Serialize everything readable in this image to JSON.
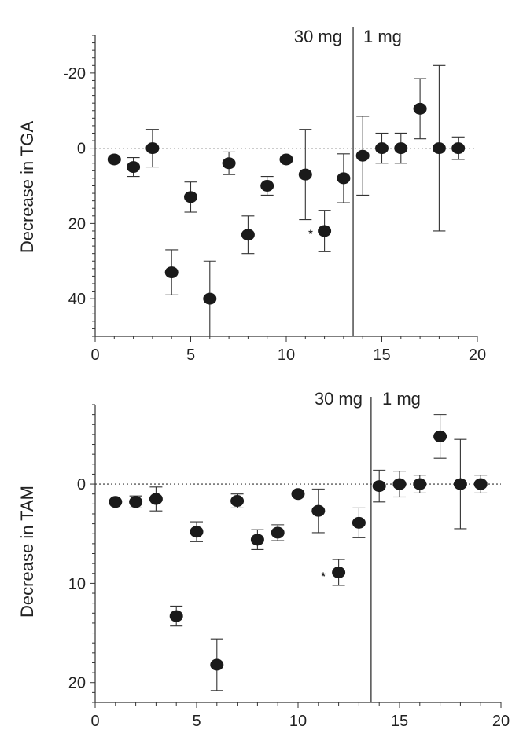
{
  "chart_data": [
    {
      "type": "scatter",
      "title": "",
      "xlabel": "",
      "ylabel": "Decrease in TGA",
      "xlim": [
        0,
        20
      ],
      "ylim": [
        -30,
        50
      ],
      "y_inverted": true,
      "x_ticks": [
        0,
        5,
        10,
        15,
        20
      ],
      "y_ticks": [
        -20,
        0,
        20,
        40
      ],
      "reference_line_y": 0,
      "divider_x": 13.5,
      "annotations": {
        "left": "30 mg",
        "right": "1 mg"
      },
      "star_label": "*",
      "star_at_x": 12,
      "points": [
        {
          "x": 1,
          "y": 3,
          "err": 0
        },
        {
          "x": 2,
          "y": 5,
          "err": 2.5
        },
        {
          "x": 3,
          "y": 0,
          "err": 5
        },
        {
          "x": 4,
          "y": 33,
          "err": 6
        },
        {
          "x": 5,
          "y": 13,
          "err": 4
        },
        {
          "x": 6,
          "y": 40,
          "err": 10
        },
        {
          "x": 7,
          "y": 4,
          "err": 3
        },
        {
          "x": 8,
          "y": 23,
          "err": 5
        },
        {
          "x": 9,
          "y": 10,
          "err": 2.5
        },
        {
          "x": 10,
          "y": 3,
          "err": 0
        },
        {
          "x": 11,
          "y": 7,
          "err": 12
        },
        {
          "x": 12,
          "y": 22,
          "err": 5.5
        },
        {
          "x": 13,
          "y": 8,
          "err": 6.5
        },
        {
          "x": 14,
          "y": 2,
          "err": 10.5
        },
        {
          "x": 15,
          "y": 0,
          "err": 4
        },
        {
          "x": 16,
          "y": 0,
          "err": 4
        },
        {
          "x": 17,
          "y": -10.5,
          "err": 8
        },
        {
          "x": 18,
          "y": 0,
          "err": 22
        },
        {
          "x": 19,
          "y": 0,
          "err": 3
        }
      ]
    },
    {
      "type": "scatter",
      "title": "",
      "xlabel": "",
      "ylabel": "Decrease in TAM",
      "xlim": [
        0,
        20
      ],
      "ylim": [
        -8,
        22
      ],
      "y_inverted": true,
      "x_ticks": [
        0,
        5,
        10,
        15,
        20
      ],
      "y_ticks": [
        0,
        10,
        20
      ],
      "reference_line_y": 0,
      "divider_x": 13.6,
      "annotations": {
        "left": "30 mg",
        "right": "1 mg"
      },
      "star_label": "*",
      "star_at_x": 12,
      "points": [
        {
          "x": 1,
          "y": 1.8,
          "err": 0
        },
        {
          "x": 2,
          "y": 1.8,
          "err": 0.6
        },
        {
          "x": 3,
          "y": 1.5,
          "err": 1.2
        },
        {
          "x": 4,
          "y": 13.3,
          "err": 1
        },
        {
          "x": 5,
          "y": 4.8,
          "err": 1
        },
        {
          "x": 6,
          "y": 18.2,
          "err": 2.6
        },
        {
          "x": 7,
          "y": 1.7,
          "err": 0.7
        },
        {
          "x": 8,
          "y": 5.6,
          "err": 1
        },
        {
          "x": 9,
          "y": 4.9,
          "err": 0.8
        },
        {
          "x": 10,
          "y": 1,
          "err": 0
        },
        {
          "x": 11,
          "y": 2.7,
          "err": 2.2
        },
        {
          "x": 12,
          "y": 8.9,
          "err": 1.3
        },
        {
          "x": 13,
          "y": 3.9,
          "err": 1.5
        },
        {
          "x": 14,
          "y": 0.2,
          "err": 1.6
        },
        {
          "x": 15,
          "y": 0,
          "err": 1.3
        },
        {
          "x": 16,
          "y": 0,
          "err": 0.9
        },
        {
          "x": 17,
          "y": -4.8,
          "err": 2.2
        },
        {
          "x": 18,
          "y": 0,
          "err": 4.5
        },
        {
          "x": 19,
          "y": 0,
          "err": 0.9
        }
      ]
    }
  ]
}
